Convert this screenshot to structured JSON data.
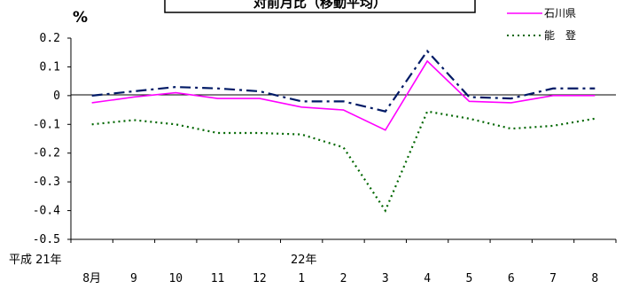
{
  "chart_data": {
    "type": "line",
    "title": "対前月比（移動平均）",
    "ylabel": "%",
    "ylim": [
      -0.5,
      0.2
    ],
    "yticks": [
      "0.2",
      "0.1",
      "0",
      "-0.1",
      "-0.2",
      "-0.3",
      "-0.4",
      "-0.5"
    ],
    "grid": false,
    "legend_position": "top-right",
    "era_labels": {
      "start": "平成 21年",
      "year22": "22年"
    },
    "categories": [
      "8月",
      "9",
      "10",
      "11",
      "12",
      "1",
      "2",
      "3",
      "4",
      "5",
      "6",
      "7",
      "8"
    ],
    "series": [
      {
        "name": "石川県",
        "style": "solid",
        "color": "#ff00ff",
        "values": [
          -0.025,
          -0.005,
          0.01,
          -0.01,
          -0.01,
          -0.04,
          -0.05,
          -0.12,
          0.12,
          -0.02,
          -0.025,
          0.0,
          0.0
        ]
      },
      {
        "name": "能　登",
        "style": "dotted",
        "color": "#006600",
        "values": [
          -0.1,
          -0.085,
          -0.1,
          -0.13,
          -0.13,
          -0.135,
          -0.18,
          -0.4,
          -0.055,
          -0.08,
          -0.115,
          -0.105,
          -0.08
        ]
      },
      {
        "name": "",
        "style": "dashdot",
        "color": "#001a66",
        "values": [
          0.0,
          0.015,
          0.03,
          0.025,
          0.015,
          -0.02,
          -0.02,
          -0.055,
          0.155,
          -0.005,
          -0.01,
          0.025,
          0.025
        ]
      }
    ]
  }
}
